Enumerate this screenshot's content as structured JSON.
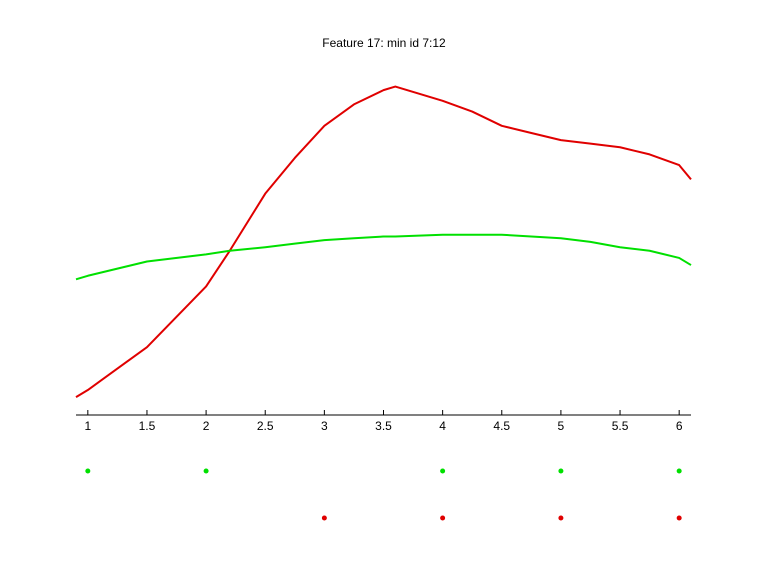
{
  "chart_data": {
    "type": "line",
    "title": "Feature 17: min id 7:12",
    "xlim": [
      0.9,
      6.1
    ],
    "xticks": [
      1,
      1.5,
      2,
      2.5,
      3,
      3.5,
      4,
      4.5,
      5,
      5.5,
      6
    ],
    "ylim": [
      0,
      1
    ],
    "grid": false,
    "x": [
      0.9,
      1.0,
      1.5,
      2.0,
      2.2,
      2.5,
      2.75,
      3.0,
      3.25,
      3.5,
      3.6,
      4.0,
      4.25,
      4.5,
      4.75,
      5.0,
      5.25,
      5.5,
      5.75,
      6.0,
      6.1
    ],
    "series": [
      {
        "color": "#e00000",
        "values": [
          0.05,
          0.07,
          0.19,
          0.36,
          0.46,
          0.62,
          0.72,
          0.81,
          0.87,
          0.91,
          0.92,
          0.88,
          0.85,
          0.81,
          0.79,
          0.77,
          0.76,
          0.75,
          0.73,
          0.7,
          0.66
        ]
      },
      {
        "color": "#00e000",
        "values": [
          0.38,
          0.39,
          0.43,
          0.45,
          0.46,
          0.47,
          0.48,
          0.49,
          0.495,
          0.5,
          0.5,
          0.505,
          0.505,
          0.505,
          0.5,
          0.495,
          0.485,
          0.47,
          0.46,
          0.44,
          0.42
        ]
      }
    ],
    "points": [
      {
        "color": "#00e000",
        "x": [
          1,
          2,
          4,
          5,
          6
        ]
      },
      {
        "color": "#e00000",
        "x": [
          3,
          4,
          5,
          6
        ]
      }
    ]
  }
}
